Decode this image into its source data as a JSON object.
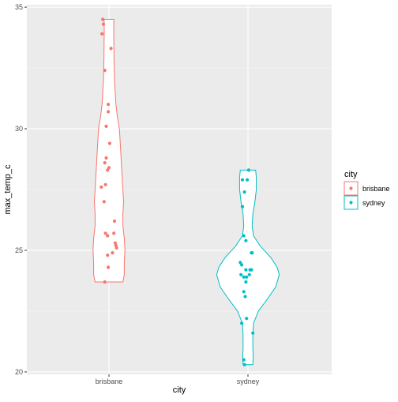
{
  "chart_data": {
    "type": "violin",
    "xlabel": "city",
    "ylabel": "max_temp_c",
    "categories": [
      "brisbane",
      "sydney"
    ],
    "ylim": [
      19.9,
      35.1
    ],
    "yticks": [
      20,
      25,
      30,
      35
    ],
    "grid": true,
    "legend": {
      "title": "city",
      "position": "right",
      "entries": [
        "brisbane",
        "sydney"
      ]
    },
    "colors": {
      "brisbane": "#F8766D",
      "sydney": "#00BFC4",
      "panel_bg": "#EBEBEB",
      "grid_major": "#FFFFFF",
      "grid_minor": "#F5F5F5"
    },
    "series": [
      {
        "name": "brisbane",
        "violin": [
          [
            23.7,
            0.2
          ],
          [
            24.0,
            0.22
          ],
          [
            24.5,
            0.22
          ],
          [
            25.0,
            0.23
          ],
          [
            25.5,
            0.22
          ],
          [
            26.0,
            0.2
          ],
          [
            26.5,
            0.2
          ],
          [
            27.0,
            0.21
          ],
          [
            27.5,
            0.2
          ],
          [
            28.0,
            0.19
          ],
          [
            28.5,
            0.18
          ],
          [
            29.0,
            0.17
          ],
          [
            29.5,
            0.16
          ],
          [
            30.0,
            0.15
          ],
          [
            30.5,
            0.12
          ],
          [
            31.0,
            0.1
          ],
          [
            31.5,
            0.09
          ],
          [
            32.0,
            0.08
          ],
          [
            32.5,
            0.075
          ],
          [
            33.0,
            0.072
          ],
          [
            33.5,
            0.07
          ],
          [
            34.0,
            0.068
          ],
          [
            34.5,
            0.07
          ]
        ],
        "points": [
          [
            -0.09,
            34.5
          ],
          [
            -0.08,
            34.3
          ],
          [
            -0.1,
            33.9
          ],
          [
            0.03,
            33.3
          ],
          [
            -0.06,
            32.4
          ],
          [
            -0.01,
            31.0
          ],
          [
            -0.01,
            30.7
          ],
          [
            -0.04,
            30.1
          ],
          [
            0.01,
            29.4
          ],
          [
            -0.04,
            28.8
          ],
          [
            -0.06,
            28.6
          ],
          [
            0.0,
            28.4
          ],
          [
            -0.02,
            28.3
          ],
          [
            -0.11,
            27.6
          ],
          [
            -0.05,
            27.7
          ],
          [
            -0.07,
            27.0
          ],
          [
            0.08,
            26.2
          ],
          [
            -0.05,
            25.7
          ],
          [
            -0.02,
            25.6
          ],
          [
            0.07,
            25.7
          ],
          [
            0.09,
            25.3
          ],
          [
            0.1,
            25.2
          ],
          [
            0.11,
            25.1
          ],
          [
            0.05,
            24.9
          ],
          [
            -0.02,
            24.8
          ],
          [
            -0.01,
            24.3
          ],
          [
            -0.06,
            23.7
          ]
        ]
      },
      {
        "name": "sydney",
        "violin": [
          [
            20.3,
            0.07
          ],
          [
            20.6,
            0.075
          ],
          [
            21.0,
            0.07
          ],
          [
            21.5,
            0.07
          ],
          [
            22.0,
            0.08
          ],
          [
            22.5,
            0.15
          ],
          [
            23.0,
            0.28
          ],
          [
            23.5,
            0.4
          ],
          [
            24.0,
            0.45
          ],
          [
            24.3,
            0.42
          ],
          [
            24.7,
            0.33
          ],
          [
            25.2,
            0.17
          ],
          [
            25.6,
            0.08
          ],
          [
            26.0,
            0.06
          ],
          [
            26.5,
            0.07
          ],
          [
            27.0,
            0.1
          ],
          [
            27.5,
            0.12
          ],
          [
            28.0,
            0.12
          ],
          [
            28.3,
            0.11
          ]
        ],
        "points": [
          [
            0.01,
            28.3
          ],
          [
            -0.08,
            27.9
          ],
          [
            -0.01,
            27.9
          ],
          [
            -0.05,
            27.4
          ],
          [
            -0.08,
            26.8
          ],
          [
            -0.06,
            25.6
          ],
          [
            -0.03,
            25.4
          ],
          [
            0.05,
            24.9
          ],
          [
            0.06,
            24.9
          ],
          [
            -0.11,
            24.5
          ],
          [
            -0.09,
            24.4
          ],
          [
            -0.03,
            24.2
          ],
          [
            0.03,
            24.2
          ],
          [
            0.05,
            24.2
          ],
          [
            -0.1,
            24.0
          ],
          [
            -0.06,
            23.9
          ],
          [
            -0.02,
            23.9
          ],
          [
            0.02,
            24.0
          ],
          [
            -0.03,
            23.7
          ],
          [
            -0.06,
            23.3
          ],
          [
            -0.04,
            23.1
          ],
          [
            -0.02,
            22.2
          ],
          [
            -0.09,
            22.0
          ],
          [
            0.07,
            21.6
          ],
          [
            -0.06,
            20.5
          ],
          [
            -0.05,
            20.3
          ]
        ]
      }
    ]
  }
}
